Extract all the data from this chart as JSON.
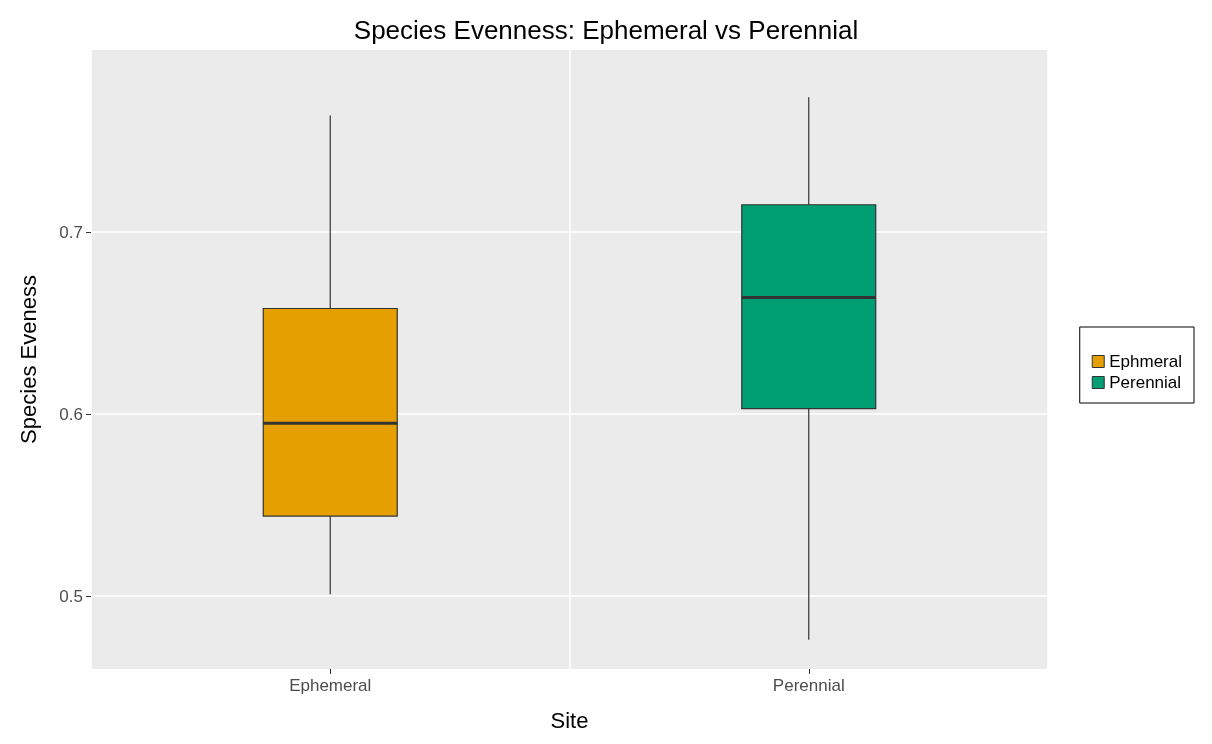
{
  "chart_data": {
    "type": "box",
    "title": "Species Evenness: Ephemeral vs Perennial",
    "xlabel": "Site",
    "ylabel": "Species Eveness",
    "categories": [
      "Ephemeral",
      "Perennial"
    ],
    "series": [
      {
        "name": "Ephmeral",
        "color": "#e69f00",
        "boxes": [
          {
            "low": 0.501,
            "q1": 0.544,
            "median": 0.595,
            "q3": 0.658,
            "high": 0.764
          },
          null
        ]
      },
      {
        "name": "Perennial",
        "color": "#009e73",
        "boxes": [
          null,
          {
            "low": 0.476,
            "q1": 0.603,
            "median": 0.664,
            "q3": 0.715,
            "high": 0.774
          }
        ]
      }
    ],
    "ylim": [
      0.46,
      0.8
    ],
    "yticks": [
      0.5,
      0.6,
      0.7
    ],
    "grid": true,
    "legend": "right"
  }
}
